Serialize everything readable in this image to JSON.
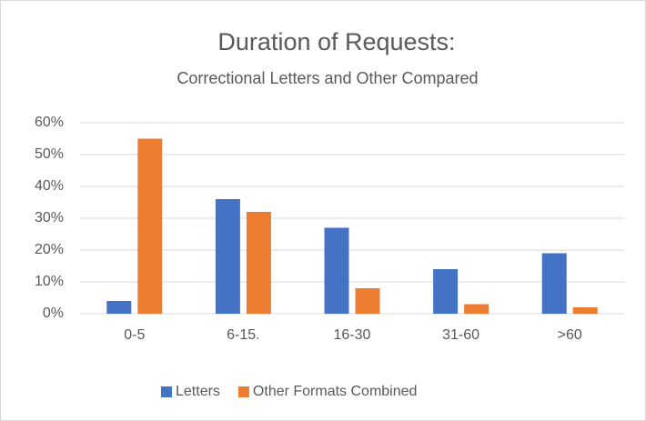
{
  "chart_data": {
    "type": "bar",
    "title": "Duration of Requests:",
    "subtitle": "Correctional Letters and Other Compared",
    "categories": [
      "0-5",
      "6-15.",
      "16-30",
      "31-60",
      ">60"
    ],
    "series": [
      {
        "name": "Letters",
        "color": "#4472c4",
        "values": [
          4,
          36,
          27,
          14,
          19
        ]
      },
      {
        "name": "Other Formats Combined",
        "color": "#ed7d31",
        "values": [
          55,
          32,
          8,
          3,
          2
        ]
      }
    ],
    "ylim": [
      0,
      60
    ],
    "yticks": [
      {
        "value": 0,
        "label": "0%"
      },
      {
        "value": 10,
        "label": "10%"
      },
      {
        "value": 20,
        "label": "20%"
      },
      {
        "value": 30,
        "label": "30%"
      },
      {
        "value": 40,
        "label": "40%"
      },
      {
        "value": 50,
        "label": "50%"
      },
      {
        "value": 60,
        "label": "60%"
      }
    ],
    "grid": true,
    "legend": "bottom"
  }
}
